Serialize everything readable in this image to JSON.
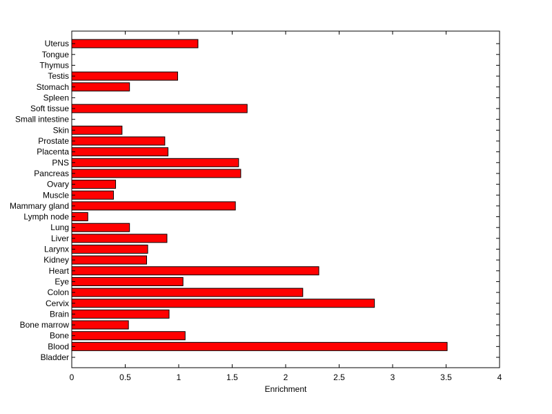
{
  "chart_data": {
    "type": "bar",
    "orientation": "horizontal",
    "title": "",
    "xlabel": "Enrichment",
    "ylabel": "",
    "xlim": [
      0,
      4
    ],
    "xticks": [
      "0",
      "0.5",
      "1",
      "1.5",
      "2",
      "2.5",
      "3",
      "3.5",
      "4"
    ],
    "grid": false,
    "bar_color": "#ff0000",
    "categories": [
      "Bladder",
      "Blood",
      "Bone",
      "Bone marrow",
      "Brain",
      "Cervix",
      "Colon",
      "Eye",
      "Heart",
      "Kidney",
      "Larynx",
      "Liver",
      "Lung",
      "Lymph node",
      "Mammary gland",
      "Muscle",
      "Ovary",
      "Pancreas",
      "PNS",
      "Placenta",
      "Prostate",
      "Skin",
      "Small intestine",
      "Soft tissue",
      "Spleen",
      "Stomach",
      "Testis",
      "Thymus",
      "Tongue",
      "Uterus"
    ],
    "values": [
      0,
      3.51,
      1.06,
      0.53,
      0.91,
      2.83,
      2.16,
      1.04,
      2.31,
      0.7,
      0.71,
      0.89,
      0.54,
      0.15,
      1.53,
      0.39,
      0.41,
      1.58,
      1.56,
      0.9,
      0.87,
      0.47,
      0,
      1.64,
      0,
      0.54,
      0.99,
      0,
      0,
      1.18
    ]
  }
}
